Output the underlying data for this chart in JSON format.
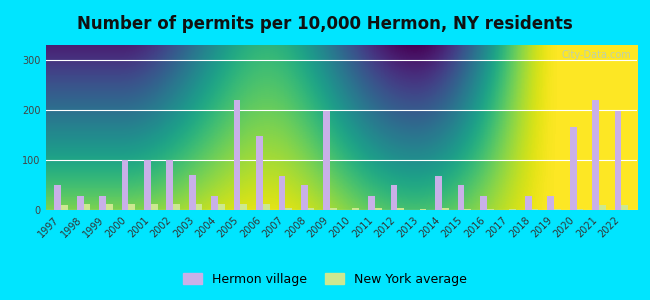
{
  "title": "Number of permits per 10,000 Hermon, NY residents",
  "years": [
    1997,
    1998,
    1999,
    2000,
    2001,
    2002,
    2003,
    2004,
    2005,
    2006,
    2007,
    2008,
    2009,
    2010,
    2011,
    2012,
    2013,
    2014,
    2015,
    2016,
    2017,
    2018,
    2019,
    2020,
    2021,
    2022
  ],
  "hermon": [
    50,
    28,
    28,
    100,
    100,
    100,
    70,
    28,
    220,
    148,
    68,
    50,
    197,
    0,
    28,
    50,
    0,
    68,
    50,
    28,
    0,
    28,
    28,
    165,
    220,
    197
  ],
  "ny_avg": [
    10,
    12,
    12,
    12,
    13,
    12,
    12,
    13,
    13,
    12,
    5,
    5,
    5,
    5,
    5,
    5,
    3,
    5,
    3,
    3,
    3,
    3,
    3,
    3,
    10,
    10
  ],
  "hermon_color": "#c9b0e8",
  "ny_color": "#cce890",
  "background_outer": "#00e5ff",
  "ylim": [
    0,
    330
  ],
  "yticks": [
    0,
    100,
    200,
    300
  ],
  "title_fontsize": 12,
  "tick_fontsize": 7,
  "legend_fontsize": 9,
  "watermark": "City-Data.com"
}
